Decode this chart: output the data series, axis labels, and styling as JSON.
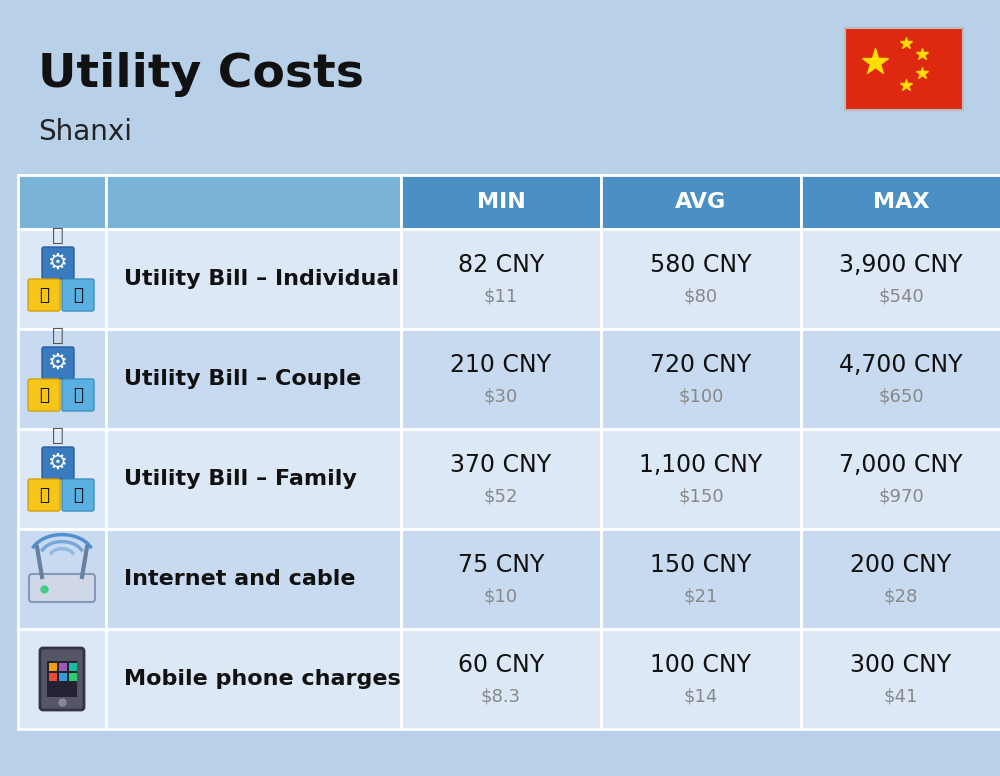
{
  "title": "Utility Costs",
  "subtitle": "Shanxi",
  "background_color": "#b8d0e8",
  "header_bg_color": "#4a90c4",
  "header_text_color": "#ffffff",
  "row_bg_colors": [
    "#dce8f5",
    "#c8daf0"
  ],
  "col_header_labels": [
    "MIN",
    "AVG",
    "MAX"
  ],
  "rows": [
    {
      "label": "Utility Bill – Individual",
      "min_cny": "82 CNY",
      "min_usd": "$11",
      "avg_cny": "580 CNY",
      "avg_usd": "$80",
      "max_cny": "3,900 CNY",
      "max_usd": "$540"
    },
    {
      "label": "Utility Bill – Couple",
      "min_cny": "210 CNY",
      "min_usd": "$30",
      "avg_cny": "720 CNY",
      "avg_usd": "$100",
      "max_cny": "4,700 CNY",
      "max_usd": "$650"
    },
    {
      "label": "Utility Bill – Family",
      "min_cny": "370 CNY",
      "min_usd": "$52",
      "avg_cny": "1,100 CNY",
      "avg_usd": "$150",
      "max_cny": "7,000 CNY",
      "max_usd": "$970"
    },
    {
      "label": "Internet and cable",
      "min_cny": "75 CNY",
      "min_usd": "$10",
      "avg_cny": "150 CNY",
      "avg_usd": "$21",
      "max_cny": "200 CNY",
      "max_usd": "$28"
    },
    {
      "label": "Mobile phone charges",
      "min_cny": "60 CNY",
      "min_usd": "$8.3",
      "avg_cny": "100 CNY",
      "avg_usd": "$14",
      "max_cny": "300 CNY",
      "max_usd": "$41"
    }
  ],
  "icon_symbols": [
    "⚡",
    "⚡",
    "⚡",
    "📡",
    "📱"
  ],
  "title_fontsize": 34,
  "subtitle_fontsize": 20,
  "header_fontsize": 16,
  "label_fontsize": 16,
  "cny_fontsize": 17,
  "usd_fontsize": 13
}
